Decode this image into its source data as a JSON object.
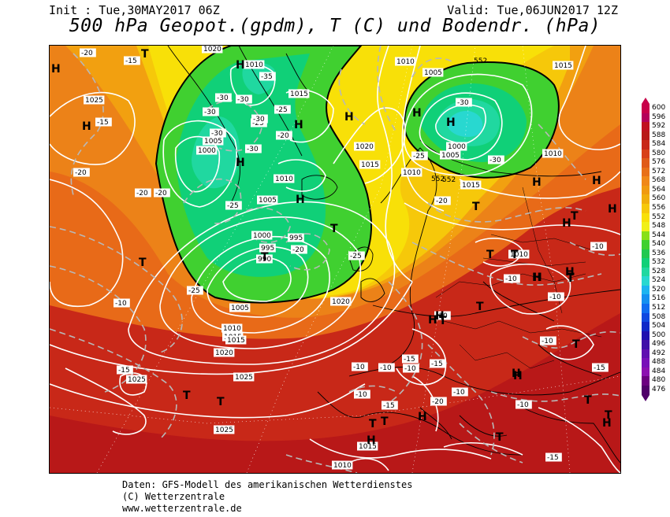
{
  "header": {
    "init": "Init : Tue,30MAY2017 06Z",
    "valid": "Valid: Tue,06JUN2017 12Z",
    "title": "500 hPa Geopot.(gpdm), T (C) und Bodendr. (hPa)"
  },
  "footer": {
    "line1": "Daten: GFS-Modell des amerikanischen Wetterdienstes",
    "line2": "(C) Wetterzentrale",
    "line3": "www.wetterzentrale.de"
  },
  "legend": {
    "levels": [
      "600",
      "596",
      "592",
      "588",
      "584",
      "580",
      "576",
      "572",
      "568",
      "564",
      "560",
      "556",
      "552",
      "548",
      "544",
      "540",
      "536",
      "532",
      "528",
      "524",
      "520",
      "516",
      "512",
      "508",
      "504",
      "500",
      "496",
      "492",
      "488",
      "484",
      "480",
      "476"
    ],
    "colors": [
      "#c8004a",
      "#b4005a",
      "#c01020",
      "#b81818",
      "#c82818",
      "#d84018",
      "#e05a18",
      "#e87018",
      "#f08818",
      "#f09a10",
      "#f0ae0c",
      "#f6c80a",
      "#f8e008",
      "#f0f018",
      "#88e018",
      "#40d030",
      "#20c850",
      "#10d078",
      "#20d8a0",
      "#28d8d0",
      "#1cb4f0",
      "#1490f0",
      "#106cf0",
      "#1048e0",
      "#1028c8",
      "#2010b0",
      "#4010a8",
      "#6010b0",
      "#7810b8",
      "#8c10b0",
      "#6c0080",
      "#50006a"
    ]
  },
  "map": {
    "pressure_labels": [
      "1020",
      "1010",
      "1005",
      "1015",
      "1025",
      "1000",
      "995",
      "990",
      "1010",
      "1005",
      "1015",
      "1020",
      "1010",
      "1015",
      "1005",
      "1000",
      "995",
      "1000",
      "1005",
      "1015",
      "1010",
      "1015",
      "1010",
      "1010",
      "1005",
      "1025",
      "1025",
      "1025",
      "1015",
      "1010",
      "1020",
      "1015",
      "1010",
      "1020"
    ],
    "temp_labels": [
      "-20",
      "-15",
      "-15",
      "-20",
      "-20",
      "-20",
      "-25",
      "-25",
      "-30",
      "-30",
      "-30",
      "-30",
      "-30",
      "-25",
      "-25",
      "-20",
      "-20",
      "-25",
      "-30",
      "-35",
      "-30",
      "-30",
      "-25",
      "-20",
      "-15",
      "-15",
      "-20",
      "-15",
      "-10",
      "-10",
      "-10",
      "-10",
      "-15",
      "-10",
      "-10",
      "-10",
      "-10",
      "-15",
      "-10",
      "-10",
      "-10",
      "-15",
      "-10"
    ],
    "height_labels": [
      "552",
      "552",
      "552"
    ],
    "centers": [
      "H",
      "T",
      "H",
      "T",
      "H",
      "H",
      "H",
      "H",
      "T",
      "T",
      "H",
      "H",
      "T",
      "T",
      "H",
      "T",
      "T",
      "H",
      "T",
      "H",
      "H",
      "T",
      "H",
      "T",
      "T",
      "H",
      "H",
      "T",
      "H",
      "T",
      "H",
      "T",
      "H",
      "H",
      "H",
      "T",
      "H",
      "T",
      "T",
      "H",
      "T",
      "H",
      "T"
    ]
  }
}
